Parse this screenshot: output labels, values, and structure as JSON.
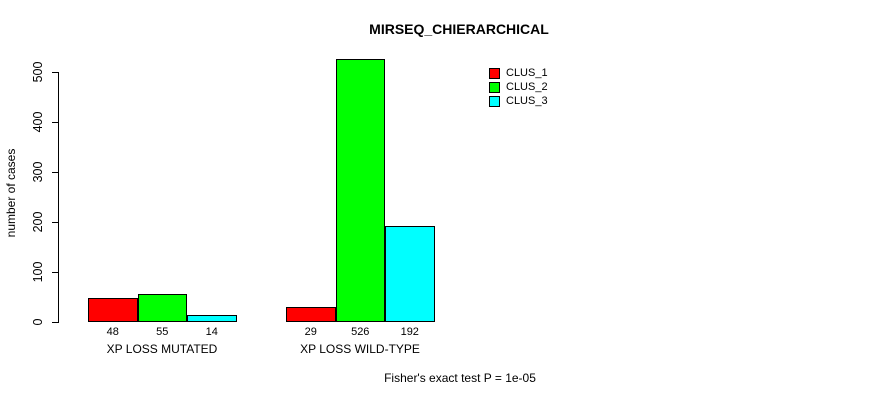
{
  "chart_data": {
    "type": "bar",
    "title": "MIRSEQ_CHIERARCHICAL",
    "categories": [
      "XP LOSS MUTATED",
      "XP LOSS WILD-TYPE"
    ],
    "series": [
      {
        "name": "CLUS_1",
        "color": "#FF0000",
        "values": [
          48,
          29
        ]
      },
      {
        "name": "CLUS_2",
        "color": "#00FF00",
        "values": [
          55,
          526
        ]
      },
      {
        "name": "CLUS_3",
        "color": "#00FFFF",
        "values": [
          14,
          192
        ]
      }
    ],
    "bar_labels": [
      [
        48,
        55,
        14
      ],
      [
        29,
        526,
        192
      ]
    ],
    "xlabel": "",
    "ylabel": "number of cases",
    "ylim": [
      0,
      500
    ],
    "yticks": [
      0,
      100,
      200,
      300,
      400,
      500
    ],
    "grid": false,
    "legend_position": "top-right",
    "annotation": "Fisher's exact test P = 1e-05",
    "colors": {
      "background": "#FFFFFF",
      "axis": "#000000",
      "text": "#000000"
    }
  }
}
